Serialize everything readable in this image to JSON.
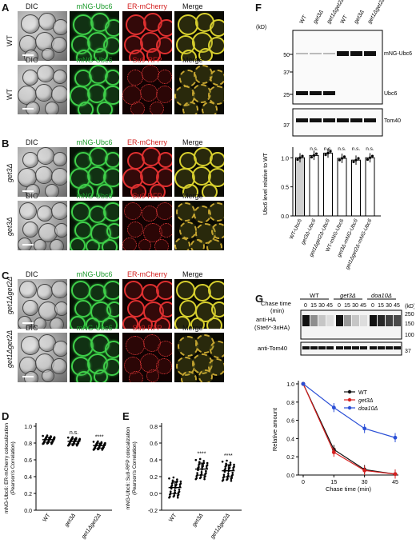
{
  "panels": {
    "A": {
      "letter": "A",
      "rows": [
        {
          "label": "WT",
          "cols": [
            "DIC",
            "mNG-Ubc6",
            "ER-mCherry",
            "Merge"
          ],
          "marker": "er"
        },
        {
          "label": "WT",
          "cols": [
            "DIC",
            "mNG-Ubc6",
            "Su9-RFP",
            "Merge"
          ],
          "marker": "mito"
        }
      ]
    },
    "B": {
      "letter": "B",
      "rows": [
        {
          "label": "get3Δ",
          "cols": [
            "DIC",
            "mNG-Ubc6",
            "ER-mCherry",
            "Merge"
          ],
          "marker": "er"
        },
        {
          "label": "get3Δ",
          "cols": [
            "DIC",
            "mNG-Ubc6",
            "Su9-RFP",
            "Merge"
          ],
          "marker": "mito"
        }
      ]
    },
    "C": {
      "letter": "C",
      "rows": [
        {
          "label": "get1Δget2Δ",
          "cols": [
            "DIC",
            "mNG-Ubc6",
            "ER-mCherry",
            "Merge"
          ],
          "marker": "er"
        },
        {
          "label": "get1Δget2Δ",
          "cols": [
            "DIC",
            "mNG-Ubc6",
            "Su9-RFP",
            "Merge"
          ],
          "marker": "mito"
        }
      ]
    },
    "D": {
      "letter": "D",
      "ylabel_line1": "mNG-Ubc6: ER-mCherry colocalization",
      "ylabel_line2": "(Pearson's Correlation)",
      "categories": [
        "WT",
        "get3Δ",
        "get1Δget2Δ"
      ],
      "significance": [
        "",
        "n.s.",
        "****"
      ]
    },
    "E": {
      "letter": "E",
      "ylabel_line1": "mNG-Ubc6: Su9-RFP colocalization",
      "ylabel_line2": "(Pearson's Correlation)",
      "categories": [
        "WT",
        "get3Δ",
        "get1Δget2Δ"
      ],
      "significance": [
        "",
        "****",
        "****"
      ]
    },
    "F": {
      "letter": "F",
      "lanes": [
        "WT",
        "get3Δ",
        "get1Δget2Δ",
        "WT",
        "get3Δ",
        "get1Δget2Δ"
      ],
      "kd_unit": "(kD)",
      "blot_labels": [
        "mNG-Ubc6",
        "Ubc6",
        "Tom40"
      ],
      "ylabel": "Ubc6 level relative to WT",
      "significance": [
        "n.s.",
        "n.s.",
        "n.s.",
        "n.s.",
        "n.s."
      ]
    },
    "G": {
      "letter": "G",
      "chase_label": "Chase time",
      "chase_unit": "(min)",
      "groups": [
        "WT",
        "get3Δ",
        "doa10Δ"
      ],
      "timepoints": [
        "0",
        "15",
        "30",
        "45"
      ],
      "blot_labels": [
        "anti-HA",
        "(Ste6*-3xHA)",
        "anti-Tom40"
      ],
      "kd_unit": "(kD)",
      "legend": [
        "WT",
        "get3Δ",
        "doa10Δ"
      ],
      "xlabel": "Chase time (min)",
      "ylabel": "Relative amount"
    }
  },
  "chart_data": [
    {
      "type": "scatter",
      "ylabel": "mNG-Ubc6: ER-mCherry colocalization (Pearson's Correlation)",
      "categories": [
        "WT",
        "get3Δ",
        "get1Δget2Δ"
      ],
      "means": [
        0.84,
        0.82,
        0.77
      ],
      "ylim": [
        0.0,
        1.0
      ],
      "yticks": [
        0.0,
        0.2,
        0.4,
        0.6,
        0.8,
        1.0
      ],
      "significance": [
        "",
        "n.s.",
        "****"
      ]
    },
    {
      "type": "scatter",
      "ylabel": "mNG-Ubc6: Su9-RFP colocalization (Pearson's Correlation)",
      "categories": [
        "WT",
        "get3Δ",
        "get1Δget2Δ"
      ],
      "means": [
        0.07,
        0.29,
        0.27
      ],
      "ylim": [
        -0.2,
        0.8
      ],
      "yticks": [
        -0.2,
        0.0,
        0.2,
        0.4,
        0.6,
        0.8
      ],
      "significance": [
        "",
        "****",
        "****"
      ]
    },
    {
      "type": "bar",
      "ylabel": "Ubc6 level relative to WT",
      "categories": [
        "WT-Ubc6",
        "get3Δ-Ubc6",
        "get1Δget2Δ-Ubc6",
        "WT-mNG-Ubc6",
        "get3Δ-mNG-Ubc6",
        "get1Δget2Δ-mNG-Ubc6"
      ],
      "values": [
        1.0,
        1.04,
        1.08,
        0.99,
        0.96,
        1.0
      ],
      "ylim": [
        0.0,
        1.0
      ],
      "yticks": [
        0.0,
        0.5,
        1.0
      ],
      "significance": [
        "",
        "n.s.",
        "n.s.",
        "n.s.",
        "n.s.",
        "n.s."
      ]
    },
    {
      "type": "line",
      "xlabel": "Chase time (min)",
      "ylabel": "Relative amount",
      "x": [
        0,
        15,
        30,
        45
      ],
      "series": [
        {
          "name": "WT",
          "values": [
            1.0,
            0.28,
            0.06,
            0.01
          ],
          "color": "#111111"
        },
        {
          "name": "get3Δ",
          "values": [
            1.0,
            0.25,
            0.05,
            0.01
          ],
          "color": "#d62020"
        },
        {
          "name": "doa10Δ",
          "values": [
            1.0,
            0.74,
            0.51,
            0.41
          ],
          "color": "#2a4fd6"
        }
      ],
      "xticks": [
        0,
        15,
        30,
        45
      ],
      "yticks": [
        0.0,
        0.2,
        0.4,
        0.6,
        0.8,
        1.0
      ],
      "ylim": [
        0.0,
        1.0
      ]
    }
  ],
  "blot_kd": {
    "F_top": [
      "50",
      "37",
      "25"
    ],
    "F_bottom": [
      "37"
    ],
    "G_top": [
      "250",
      "150",
      "100"
    ],
    "G_bottom": [
      "37"
    ]
  }
}
